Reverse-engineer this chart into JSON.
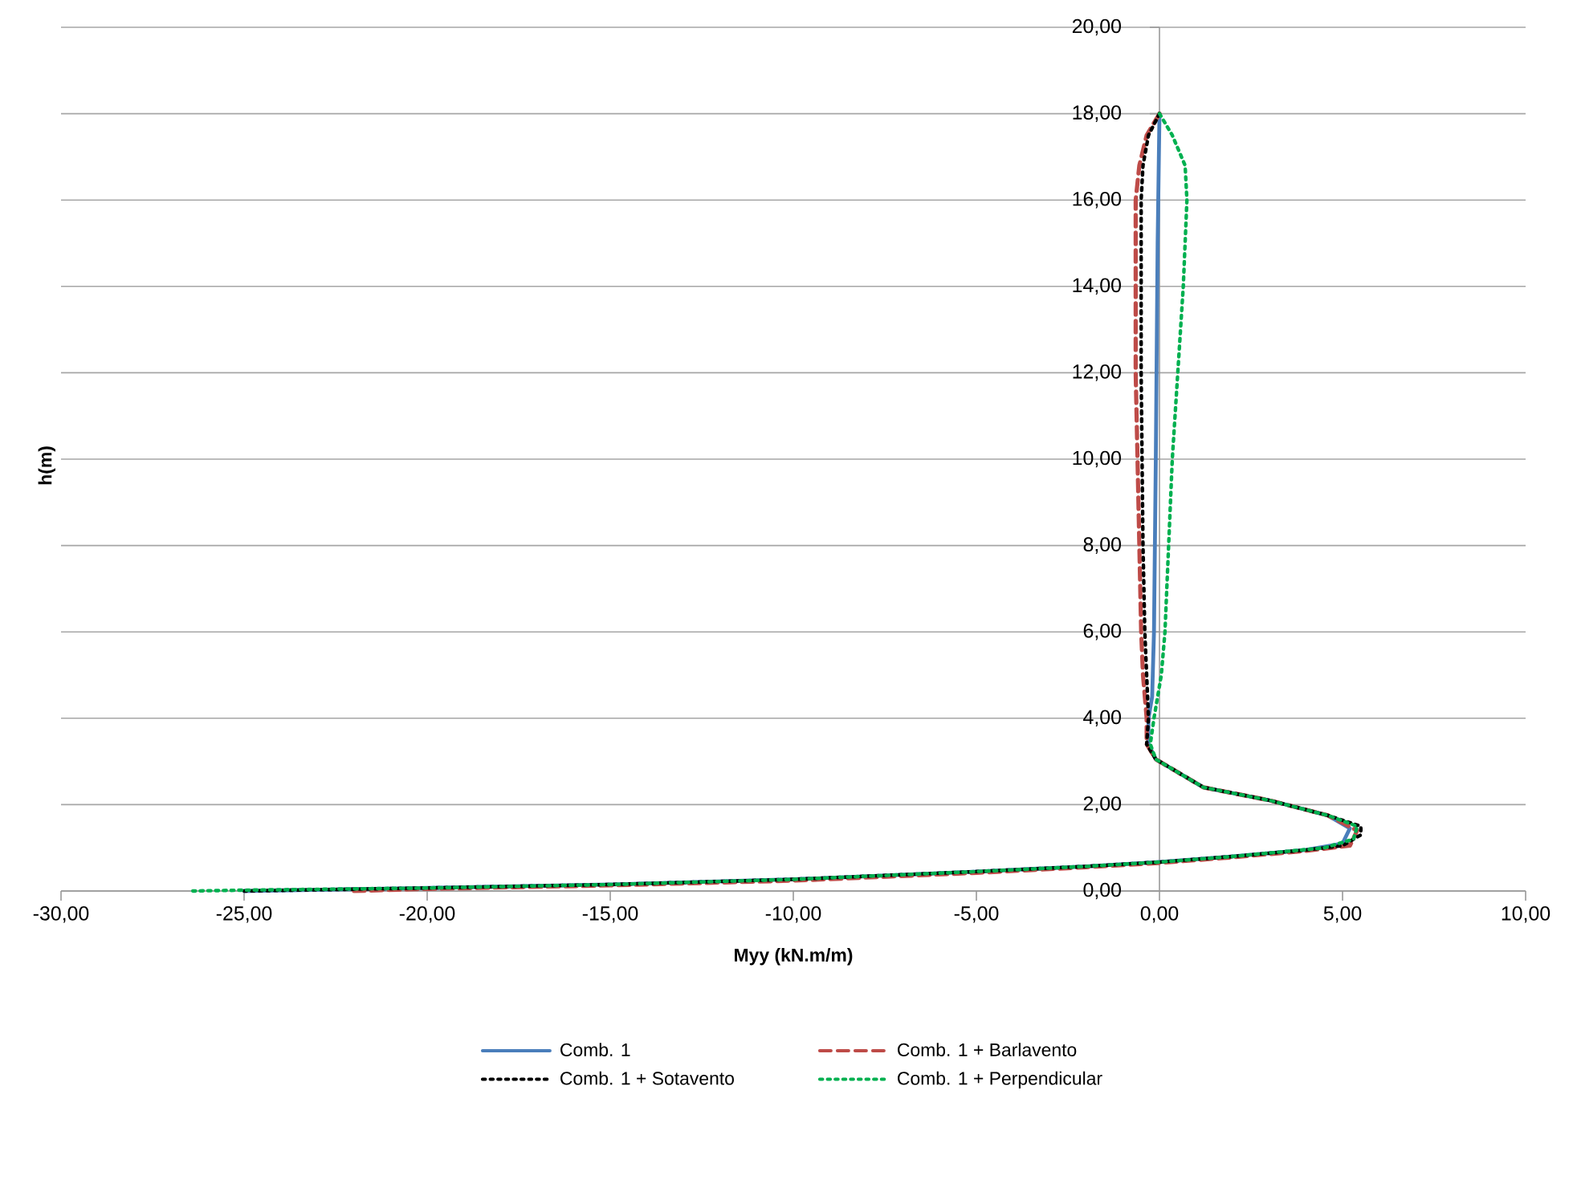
{
  "chart_data": {
    "type": "line",
    "xlabel": "Myy (kN.m/m)",
    "ylabel": "h(m)",
    "xlim": [
      -30,
      10
    ],
    "ylim": [
      0,
      20
    ],
    "xticks": [
      {
        "value": -30,
        "label": "-30,00"
      },
      {
        "value": -25,
        "label": "-25,00"
      },
      {
        "value": -20,
        "label": "-20,00"
      },
      {
        "value": -15,
        "label": "-15,00"
      },
      {
        "value": -10,
        "label": "-10,00"
      },
      {
        "value": -5,
        "label": "-5,00"
      },
      {
        "value": 0,
        "label": "0,00"
      },
      {
        "value": 5,
        "label": "5,00"
      },
      {
        "value": 10,
        "label": "10,00"
      }
    ],
    "yticks": [
      {
        "value": 0,
        "label": "0,00"
      },
      {
        "value": 2,
        "label": "2,00"
      },
      {
        "value": 4,
        "label": "4,00"
      },
      {
        "value": 6,
        "label": "6,00"
      },
      {
        "value": 8,
        "label": "8,00"
      },
      {
        "value": 10,
        "label": "10,00"
      },
      {
        "value": 12,
        "label": "12,00"
      },
      {
        "value": 14,
        "label": "14,00"
      },
      {
        "value": 16,
        "label": "16,00"
      },
      {
        "value": 18,
        "label": "18,00"
      },
      {
        "value": 20,
        "label": "20,00"
      }
    ],
    "grid": "y",
    "legend": "bottom",
    "marker": "none",
    "series": [
      {
        "name": "Comb. 1",
        "color": "#4a7ebb",
        "line_style": "solid",
        "x": [
          0,
          -0.05,
          -0.1,
          -0.15,
          -0.2,
          -0.3,
          -0.3,
          -0.1,
          0.2,
          1.2,
          3,
          4.6,
          5.2,
          5.0,
          4.0,
          2,
          0,
          -2,
          -5,
          -10,
          -15,
          -20,
          -25
        ],
        "values": [
          18,
          15,
          10,
          6,
          4.5,
          4,
          3.4,
          3.05,
          2.9,
          2.4,
          2.1,
          1.75,
          1.45,
          1.1,
          0.95,
          0.8,
          0.67,
          0.57,
          0.45,
          0.27,
          0.15,
          0.07,
          0
        ]
      },
      {
        "name": "Comb. 1 + Barlavento",
        "color": "#be4b48",
        "line_style": "dashed",
        "x": [
          0,
          -0.35,
          -0.55,
          -0.65,
          -0.65,
          -0.55,
          -0.5,
          -0.45,
          -0.35,
          -0.35,
          -0.1,
          0.2,
          1.2,
          3,
          4.6,
          5.4,
          5.2,
          4,
          2,
          0,
          -2,
          -5,
          -10,
          -15,
          -20,
          -22
        ],
        "values": [
          18,
          17.5,
          16.8,
          16,
          12,
          8,
          6,
          5,
          4,
          3.4,
          3.05,
          2.9,
          2.4,
          2.1,
          1.75,
          1.4,
          1.05,
          0.93,
          0.78,
          0.65,
          0.55,
          0.42,
          0.24,
          0.13,
          0.05,
          0
        ]
      },
      {
        "name": "Comb. 1 + Sotavento",
        "color": "#000000",
        "line_style": "dotted",
        "x": [
          0,
          -0.3,
          -0.45,
          -0.5,
          -0.5,
          -0.45,
          -0.4,
          -0.35,
          -0.3,
          -0.35,
          -0.1,
          0.2,
          1.2,
          3,
          4.6,
          5.5,
          5.5,
          5.0,
          4,
          2,
          0,
          -2,
          -5,
          -10,
          -15,
          -20,
          -25
        ],
        "values": [
          18,
          17.5,
          16.8,
          16,
          12,
          8,
          6,
          5,
          4,
          3.4,
          3.05,
          2.9,
          2.4,
          2.1,
          1.75,
          1.5,
          1.3,
          1.05,
          0.95,
          0.8,
          0.67,
          0.57,
          0.45,
          0.27,
          0.15,
          0.07,
          0
        ]
      },
      {
        "name": "Comb. 1 + Perpendicular",
        "color": "#00b050",
        "line_style": "dotted",
        "x": [
          0,
          0.35,
          0.7,
          0.75,
          0.65,
          0.5,
          0.35,
          0.25,
          0.15,
          0.05,
          -0.15,
          -0.25,
          -0.1,
          0.2,
          1.2,
          3,
          4.6,
          5.4,
          5.3,
          4.5,
          2,
          0,
          -2,
          -5,
          -10,
          -15,
          -20,
          -25,
          -26.4
        ],
        "values": [
          18,
          17.5,
          16.8,
          16,
          14,
          12,
          10,
          8,
          6,
          5,
          4,
          3.4,
          3.05,
          2.9,
          2.4,
          2.1,
          1.75,
          1.5,
          1.2,
          1.0,
          0.8,
          0.67,
          0.57,
          0.45,
          0.27,
          0.15,
          0.07,
          0.02,
          0
        ]
      }
    ]
  }
}
